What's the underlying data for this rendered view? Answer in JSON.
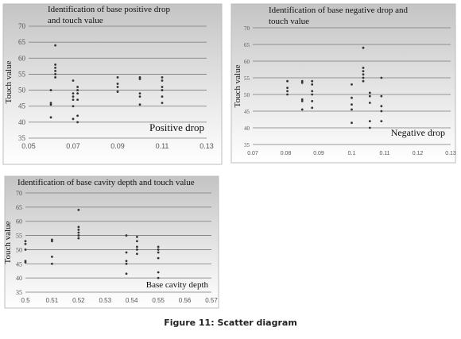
{
  "figure_caption": "Figure 11: Scatter diagram",
  "chart_data": [
    {
      "type": "scatter",
      "title": "Identification of base positive drop and touch value",
      "title_lines": [
        "Identification of base positive drop",
        "and touch value"
      ],
      "ylabel": "Touch value",
      "annotation": "Positive drop",
      "xlim": [
        0.05,
        0.13
      ],
      "ylim": [
        35,
        70
      ],
      "x_ticks": [
        "0.05",
        "0.07",
        "0.09",
        "0.11",
        "0.13"
      ],
      "y_ticks": [
        "35",
        "40",
        "45",
        "50",
        "55",
        "60",
        "65",
        "70"
      ],
      "grid": true,
      "points": [
        {
          "x": 0.06,
          "y": 41.5
        },
        {
          "x": 0.06,
          "y": 45.5
        },
        {
          "x": 0.06,
          "y": 46
        },
        {
          "x": 0.06,
          "y": 50
        },
        {
          "x": 0.062,
          "y": 54
        },
        {
          "x": 0.062,
          "y": 55
        },
        {
          "x": 0.062,
          "y": 56
        },
        {
          "x": 0.062,
          "y": 57
        },
        {
          "x": 0.062,
          "y": 58
        },
        {
          "x": 0.062,
          "y": 64
        },
        {
          "x": 0.07,
          "y": 41
        },
        {
          "x": 0.07,
          "y": 45
        },
        {
          "x": 0.07,
          "y": 47
        },
        {
          "x": 0.07,
          "y": 48
        },
        {
          "x": 0.07,
          "y": 49
        },
        {
          "x": 0.07,
          "y": 53
        },
        {
          "x": 0.072,
          "y": 40
        },
        {
          "x": 0.072,
          "y": 42
        },
        {
          "x": 0.072,
          "y": 47
        },
        {
          "x": 0.072,
          "y": 49
        },
        {
          "x": 0.072,
          "y": 50
        },
        {
          "x": 0.072,
          "y": 51
        },
        {
          "x": 0.09,
          "y": 49.5
        },
        {
          "x": 0.09,
          "y": 51
        },
        {
          "x": 0.09,
          "y": 52
        },
        {
          "x": 0.09,
          "y": 54
        },
        {
          "x": 0.1,
          "y": 45.5
        },
        {
          "x": 0.1,
          "y": 48
        },
        {
          "x": 0.1,
          "y": 49
        },
        {
          "x": 0.1,
          "y": 53.5
        },
        {
          "x": 0.1,
          "y": 54
        },
        {
          "x": 0.11,
          "y": 46
        },
        {
          "x": 0.11,
          "y": 48
        },
        {
          "x": 0.11,
          "y": 50
        },
        {
          "x": 0.11,
          "y": 51
        },
        {
          "x": 0.11,
          "y": 53
        },
        {
          "x": 0.11,
          "y": 54
        }
      ]
    },
    {
      "type": "scatter",
      "title": "Identification of base negative drop and touch value",
      "title_lines": [
        "Identification of base negative drop and",
        "touch value"
      ],
      "ylabel": "Touch value",
      "annotation": "Negative drop",
      "xlim": [
        0.07,
        0.13
      ],
      "ylim": [
        35,
        70
      ],
      "x_ticks": [
        "0.07",
        "0.08",
        "0.09",
        "0.1",
        "0.11",
        "0.12",
        "0.13"
      ],
      "y_ticks": [
        "35",
        "40",
        "45",
        "50",
        "55",
        "60",
        "65",
        "70"
      ],
      "grid": true,
      "points": [
        {
          "x": 0.0805,
          "y": 50
        },
        {
          "x": 0.0805,
          "y": 51
        },
        {
          "x": 0.0805,
          "y": 52
        },
        {
          "x": 0.0805,
          "y": 54
        },
        {
          "x": 0.085,
          "y": 45.5
        },
        {
          "x": 0.085,
          "y": 48
        },
        {
          "x": 0.085,
          "y": 48.5
        },
        {
          "x": 0.085,
          "y": 53.5
        },
        {
          "x": 0.085,
          "y": 54
        },
        {
          "x": 0.088,
          "y": 46
        },
        {
          "x": 0.088,
          "y": 48
        },
        {
          "x": 0.088,
          "y": 50
        },
        {
          "x": 0.088,
          "y": 51
        },
        {
          "x": 0.088,
          "y": 53
        },
        {
          "x": 0.088,
          "y": 54
        },
        {
          "x": 0.1,
          "y": 41.5
        },
        {
          "x": 0.1,
          "y": 45.5
        },
        {
          "x": 0.1,
          "y": 47
        },
        {
          "x": 0.1,
          "y": 49
        },
        {
          "x": 0.1,
          "y": 53
        },
        {
          "x": 0.1035,
          "y": 54
        },
        {
          "x": 0.1035,
          "y": 55
        },
        {
          "x": 0.1035,
          "y": 56
        },
        {
          "x": 0.1035,
          "y": 57
        },
        {
          "x": 0.1035,
          "y": 58
        },
        {
          "x": 0.1035,
          "y": 64
        },
        {
          "x": 0.1055,
          "y": 40
        },
        {
          "x": 0.1055,
          "y": 42
        },
        {
          "x": 0.1055,
          "y": 47.5
        },
        {
          "x": 0.1055,
          "y": 49.5
        },
        {
          "x": 0.1055,
          "y": 50.5
        },
        {
          "x": 0.109,
          "y": 42
        },
        {
          "x": 0.109,
          "y": 45
        },
        {
          "x": 0.109,
          "y": 46.5
        },
        {
          "x": 0.109,
          "y": 49.5
        },
        {
          "x": 0.109,
          "y": 55
        }
      ]
    },
    {
      "type": "scatter",
      "title": "Identification of base cavity depth and touch value",
      "title_lines": [
        "Identification of base cavity depth and touch value"
      ],
      "ylabel": "Touch value",
      "annotation": "Base cavity depth",
      "xlim": [
        0.5,
        0.57
      ],
      "ylim": [
        35,
        70
      ],
      "x_ticks": [
        "0.5",
        "0.51",
        "0.52",
        "0.53",
        "0.54",
        "0.55",
        "0.56",
        "0.57"
      ],
      "y_ticks": [
        "35",
        "40",
        "45",
        "50",
        "55",
        "60",
        "65",
        "70"
      ],
      "grid": true,
      "points": [
        {
          "x": 0.5,
          "y": 45.5
        },
        {
          "x": 0.5,
          "y": 46
        },
        {
          "x": 0.5,
          "y": 50
        },
        {
          "x": 0.5,
          "y": 52
        },
        {
          "x": 0.5,
          "y": 53
        },
        {
          "x": 0.51,
          "y": 45
        },
        {
          "x": 0.51,
          "y": 47.5
        },
        {
          "x": 0.51,
          "y": 53
        },
        {
          "x": 0.51,
          "y": 53.5
        },
        {
          "x": 0.52,
          "y": 54
        },
        {
          "x": 0.52,
          "y": 55
        },
        {
          "x": 0.52,
          "y": 56
        },
        {
          "x": 0.52,
          "y": 57
        },
        {
          "x": 0.52,
          "y": 58
        },
        {
          "x": 0.52,
          "y": 64
        },
        {
          "x": 0.538,
          "y": 41.5
        },
        {
          "x": 0.538,
          "y": 45
        },
        {
          "x": 0.538,
          "y": 46
        },
        {
          "x": 0.538,
          "y": 49
        },
        {
          "x": 0.538,
          "y": 55
        },
        {
          "x": 0.542,
          "y": 48.5
        },
        {
          "x": 0.542,
          "y": 50
        },
        {
          "x": 0.542,
          "y": 51
        },
        {
          "x": 0.542,
          "y": 53
        },
        {
          "x": 0.542,
          "y": 54.5
        },
        {
          "x": 0.55,
          "y": 40
        },
        {
          "x": 0.55,
          "y": 42
        },
        {
          "x": 0.55,
          "y": 47
        },
        {
          "x": 0.55,
          "y": 49
        },
        {
          "x": 0.55,
          "y": 50
        },
        {
          "x": 0.55,
          "y": 51
        }
      ]
    }
  ]
}
